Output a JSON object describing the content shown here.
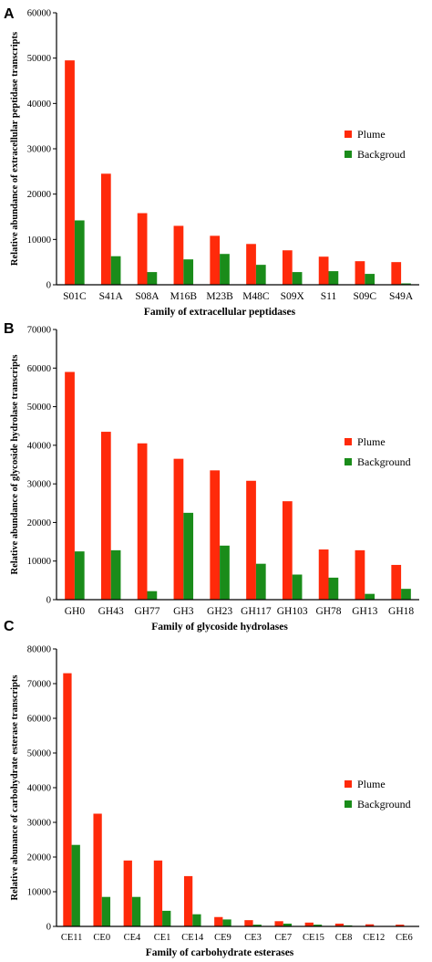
{
  "colors": {
    "plume": "#ff2a0a",
    "background": "#1a8c1a"
  },
  "chart_data": [
    {
      "panel_label": "A",
      "type": "bar",
      "ylabel": "Relative abundance of extracellular peptidase transcripts",
      "xlabel": "Family of extracellular peptidases",
      "ylim": [
        0,
        60000
      ],
      "yticks": [
        "0",
        "10000",
        "20000",
        "30000",
        "40000",
        "50000",
        "60000"
      ],
      "categories": [
        "S01C",
        "S41A",
        "S08A",
        "M16B",
        "M23B",
        "M48C",
        "S09X",
        "S11",
        "S09C",
        "S49A"
      ],
      "series": [
        {
          "name": "Plume",
          "values": [
            49500,
            24500,
            15800,
            13000,
            10800,
            9000,
            7600,
            6200,
            5200,
            5000
          ]
        },
        {
          "name": "Backgroud",
          "values": [
            14200,
            6300,
            2800,
            5600,
            6800,
            4400,
            2800,
            3000,
            2400,
            300
          ]
        }
      ],
      "legend_position": "right"
    },
    {
      "panel_label": "B",
      "type": "bar",
      "ylabel": "Relative abundance of glycoside hydrolase transcripts",
      "xlabel": "Family of glycoside hydrolases",
      "ylim": [
        0,
        70000
      ],
      "yticks": [
        "0",
        "10000",
        "20000",
        "30000",
        "40000",
        "50000",
        "60000",
        "70000"
      ],
      "categories": [
        "GH0",
        "GH43",
        "GH77",
        "GH3",
        "GH23",
        "GH117",
        "GH103",
        "GH78",
        "GH13",
        "GH18"
      ],
      "series": [
        {
          "name": "Plume",
          "values": [
            59000,
            43500,
            40500,
            36500,
            33500,
            30800,
            25500,
            13000,
            12800,
            9000
          ]
        },
        {
          "name": "Background",
          "values": [
            12500,
            12800,
            2200,
            22500,
            14000,
            9300,
            6500,
            5700,
            1500,
            2800
          ]
        }
      ],
      "legend_position": "right"
    },
    {
      "panel_label": "C",
      "type": "bar",
      "ylabel": "Relative abunance of carbohydrate esterase transcripts",
      "xlabel": "Family of carbohydrate esterases",
      "ylim": [
        0,
        80000
      ],
      "yticks": [
        "0",
        "10000",
        "20000",
        "30000",
        "40000",
        "50000",
        "60000",
        "70000",
        "80000"
      ],
      "categories": [
        "CE11",
        "CE0",
        "CE4",
        "CE1",
        "CE14",
        "CE9",
        "CE3",
        "CE7",
        "CE15",
        "CE8",
        "CE12",
        "CE6"
      ],
      "series": [
        {
          "name": "Plume",
          "values": [
            73000,
            32500,
            19000,
            19000,
            14500,
            2700,
            1800,
            1500,
            1100,
            800,
            600,
            500
          ]
        },
        {
          "name": "Background",
          "values": [
            23500,
            8500,
            8500,
            4500,
            3500,
            2000,
            500,
            800,
            500,
            300,
            100,
            100
          ]
        }
      ],
      "legend_position": "right"
    }
  ]
}
